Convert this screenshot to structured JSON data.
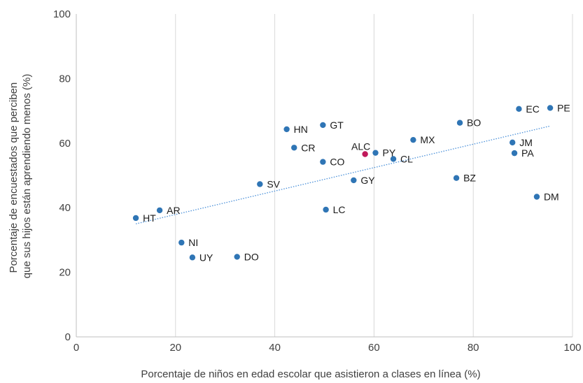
{
  "chart_data": {
    "type": "scatter",
    "xlabel": "Porcentaje de niños en edad escolar que asistieron a clases en línea (%)",
    "ylabel_lines": [
      "Porcentaje de encuestados que perciben",
      "que sus hijos están aprendiendo menos (%)"
    ],
    "xlim": [
      0,
      100
    ],
    "ylim": [
      0,
      100
    ],
    "x_ticks": [
      "0",
      "20",
      "40",
      "60",
      "80",
      "100"
    ],
    "y_ticks": [
      "0",
      "20",
      "40",
      "60",
      "80",
      "100"
    ],
    "grid": "vertical",
    "trendline": {
      "style": "dotted",
      "x": [
        12,
        95.5
      ],
      "y": [
        35,
        65.3
      ]
    },
    "colors": {
      "point": "#2f75b5",
      "highlight": "#c0185a",
      "trend": "#4a90d9",
      "grid": "#d9d9d9"
    },
    "points": [
      {
        "label": "HT",
        "x": 12,
        "y": 36.8
      },
      {
        "label": "AR",
        "x": 16.8,
        "y": 39.2
      },
      {
        "label": "NI",
        "x": 21.2,
        "y": 29.2
      },
      {
        "label": "UY",
        "x": 23.4,
        "y": 24.6
      },
      {
        "label": "DO",
        "x": 32.4,
        "y": 24.8
      },
      {
        "label": "SV",
        "x": 37,
        "y": 47.3
      },
      {
        "label": "HN",
        "x": 42.4,
        "y": 64.3
      },
      {
        "label": "CR",
        "x": 43.9,
        "y": 58.6
      },
      {
        "label": "GT",
        "x": 49.7,
        "y": 65.6
      },
      {
        "label": "CO",
        "x": 49.7,
        "y": 54.2
      },
      {
        "label": "LC",
        "x": 50.3,
        "y": 39.4
      },
      {
        "label": "GY",
        "x": 55.9,
        "y": 48.5
      },
      {
        "label": "ALC",
        "x": 58.2,
        "y": 56.6,
        "highlight": true
      },
      {
        "label": "PY",
        "x": 60.3,
        "y": 57
      },
      {
        "label": "CL",
        "x": 63.9,
        "y": 55.1
      },
      {
        "label": "MX",
        "x": 67.9,
        "y": 61
      },
      {
        "label": "BZ",
        "x": 76.6,
        "y": 49.2
      },
      {
        "label": "BO",
        "x": 77.3,
        "y": 66.3
      },
      {
        "label": "JM",
        "x": 87.9,
        "y": 60.2
      },
      {
        "label": "PA",
        "x": 88.3,
        "y": 56.9
      },
      {
        "label": "EC",
        "x": 89.2,
        "y": 70.6
      },
      {
        "label": "DM",
        "x": 92.8,
        "y": 43.4
      },
      {
        "label": "PE",
        "x": 95.5,
        "y": 70.9
      }
    ]
  }
}
